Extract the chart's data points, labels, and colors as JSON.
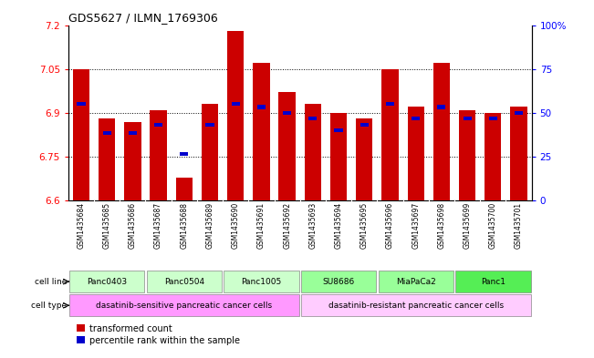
{
  "title": "GDS5627 / ILMN_1769306",
  "samples": [
    "GSM1435684",
    "GSM1435685",
    "GSM1435686",
    "GSM1435687",
    "GSM1435688",
    "GSM1435689",
    "GSM1435690",
    "GSM1435691",
    "GSM1435692",
    "GSM1435693",
    "GSM1435694",
    "GSM1435695",
    "GSM1435696",
    "GSM1435697",
    "GSM1435698",
    "GSM1435699",
    "GSM1435700",
    "GSM1435701"
  ],
  "red_values": [
    7.05,
    6.88,
    6.87,
    6.91,
    6.68,
    6.93,
    7.18,
    7.07,
    6.97,
    6.93,
    6.9,
    6.88,
    7.05,
    6.92,
    7.07,
    6.91,
    6.9,
    6.92
  ],
  "blue_values": [
    6.93,
    6.83,
    6.83,
    6.86,
    6.76,
    6.86,
    6.93,
    6.92,
    6.9,
    6.88,
    6.84,
    6.86,
    6.93,
    6.88,
    6.92,
    6.88,
    6.88,
    6.9
  ],
  "ylim_left": [
    6.6,
    7.2
  ],
  "ylim_right": [
    0,
    100
  ],
  "yticks_left": [
    6.6,
    6.75,
    6.9,
    7.05,
    7.2
  ],
  "yticks_right": [
    0,
    25,
    50,
    75,
    100
  ],
  "cell_line_data": [
    {
      "label": "Panc0403",
      "cols": [
        0,
        1,
        2
      ],
      "color": "#ccffcc"
    },
    {
      "label": "Panc0504",
      "cols": [
        3,
        4,
        5
      ],
      "color": "#ccffcc"
    },
    {
      "label": "Panc1005",
      "cols": [
        6,
        7,
        8
      ],
      "color": "#ccffcc"
    },
    {
      "label": "SU8686",
      "cols": [
        9,
        10,
        11
      ],
      "color": "#99ff99"
    },
    {
      "label": "MiaPaCa2",
      "cols": [
        12,
        13,
        14
      ],
      "color": "#99ff99"
    },
    {
      "label": "Panc1",
      "cols": [
        15,
        16,
        17
      ],
      "color": "#55ee55"
    }
  ],
  "cell_type_data": [
    {
      "label": "dasatinib-sensitive pancreatic cancer cells",
      "cols": [
        0,
        8
      ],
      "color": "#ff99ff"
    },
    {
      "label": "dasatinib-resistant pancreatic cancer cells",
      "cols": [
        9,
        17
      ],
      "color": "#ffccff"
    }
  ],
  "bar_color_red": "#cc0000",
  "bar_color_blue": "#0000cc",
  "bar_width": 0.65,
  "base_value": 6.6,
  "sample_bg_color": "#cccccc",
  "left_label_color": "#555555"
}
